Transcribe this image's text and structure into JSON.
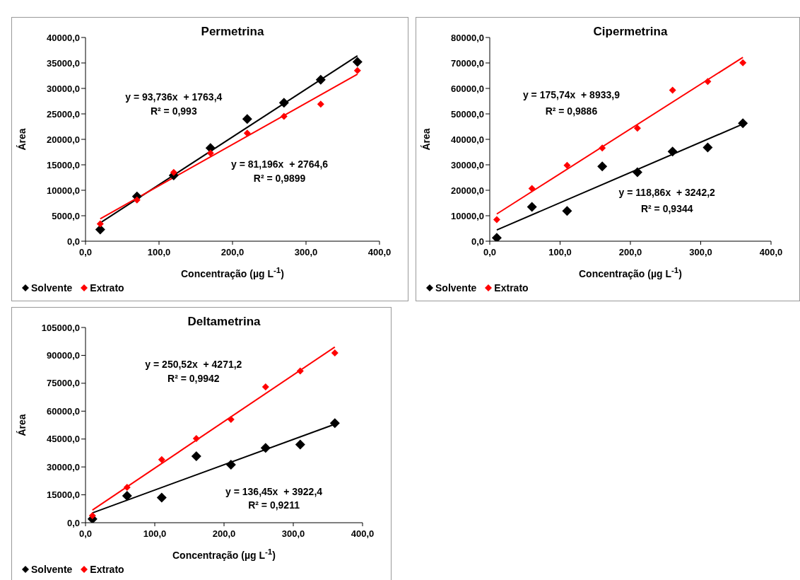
{
  "chart_data": [
    {
      "type": "scatter",
      "title": "Permetrina",
      "xlabel": "Concentração (µg L$^{-1}$)",
      "ylabel": "Área",
      "marker": "diamond",
      "legend": "bottom left",
      "line_style": "solid",
      "xlim": [
        0,
        400
      ],
      "xticks": [
        {
          "value": 0,
          "label": "0,0"
        },
        {
          "value": 100,
          "label": "100,0"
        },
        {
          "value": 200,
          "label": "200,0"
        },
        {
          "value": 300,
          "label": "300,0"
        },
        {
          "value": 400,
          "label": "400,0"
        }
      ],
      "ylim": [
        0,
        40000
      ],
      "yticks": [
        {
          "value": 0,
          "label": "0,0"
        },
        {
          "value": 5000,
          "label": "5000,0"
        },
        {
          "value": 10000,
          "label": "10000,0"
        },
        {
          "value": 15000,
          "label": "15000,0"
        },
        {
          "value": 20000,
          "label": "20000,0"
        },
        {
          "value": 25000,
          "label": "25000,0"
        },
        {
          "value": 30000,
          "label": "30000,0"
        },
        {
          "value": 35000,
          "label": "35000,0"
        },
        {
          "value": 40000,
          "label": "40000,0"
        }
      ],
      "series": [
        {
          "name": "Solvente",
          "color": "#000000",
          "x": [
            20,
            70,
            120,
            170,
            220,
            270,
            320,
            370
          ],
          "values": [
            2300,
            8800,
            12900,
            18300,
            24000,
            27200,
            31700,
            35200
          ]
        },
        {
          "name": "Extrato",
          "color": "#ff0000",
          "x": [
            20,
            70,
            120,
            170,
            220,
            270,
            320,
            370
          ],
          "values": [
            3400,
            8100,
            13500,
            17300,
            21200,
            24500,
            26900,
            33500
          ]
        },
        {
          "type": "line",
          "marker": "none",
          "color": "#000000",
          "x": [
            20,
            370
          ],
          "values": [
            3600,
            36400
          ]
        },
        {
          "type": "line",
          "marker": "none",
          "color": "#ff0000",
          "x": [
            20,
            370
          ],
          "values": [
            4400,
            32800
          ]
        }
      ],
      "annotations": [
        "y = 93,736x  + 1763,4",
        "R² = 0,993",
        "y = 81,196x  + 2764,6",
        "R² = 0,9899"
      ]
    },
    {
      "type": "scatter",
      "title": "Cipermetrina",
      "xlabel": "Concentração (µg L$^{-1}$)",
      "ylabel": "Área",
      "marker": "diamond",
      "legend": "bottom left",
      "line_style": "solid",
      "xlim": [
        0,
        400
      ],
      "xticks": [
        {
          "value": 0,
          "label": "0,0"
        },
        {
          "value": 100,
          "label": "100,0"
        },
        {
          "value": 200,
          "label": "200,0"
        },
        {
          "value": 300,
          "label": "300,0"
        },
        {
          "value": 400,
          "label": "400,0"
        }
      ],
      "ylim": [
        0,
        80000
      ],
      "yticks": [
        {
          "value": 0,
          "label": "0,0"
        },
        {
          "value": 10000,
          "label": "10000,0"
        },
        {
          "value": 20000,
          "label": "20000,0"
        },
        {
          "value": 30000,
          "label": "30000,0"
        },
        {
          "value": 40000,
          "label": "40000,0"
        },
        {
          "value": 50000,
          "label": "50000,0"
        },
        {
          "value": 60000,
          "label": "60000,0"
        },
        {
          "value": 70000,
          "label": "70000,0"
        },
        {
          "value": 80000,
          "label": "80000,0"
        }
      ],
      "series": [
        {
          "name": "Solvente",
          "color": "#000000",
          "x": [
            10,
            60,
            110,
            160,
            210,
            260,
            310,
            360
          ],
          "values": [
            1300,
            13500,
            11900,
            29400,
            27100,
            35200,
            36800,
            46300
          ]
        },
        {
          "name": "Extrato",
          "color": "#ff0000",
          "x": [
            10,
            60,
            110,
            160,
            210,
            260,
            310,
            360
          ],
          "values": [
            8500,
            20700,
            29800,
            36600,
            44400,
            59300,
            62700,
            70100
          ]
        },
        {
          "type": "line",
          "marker": "none",
          "color": "#000000",
          "x": [
            10,
            360
          ],
          "values": [
            4400,
            46000
          ]
        },
        {
          "type": "line",
          "marker": "none",
          "color": "#ff0000",
          "x": [
            10,
            360
          ],
          "values": [
            10700,
            72200
          ]
        }
      ],
      "annotations": [
        "y = 175,74x  + 8933,9",
        "R² = 0,9886",
        "y = 118,86x  + 3242,2",
        "R² = 0,9344"
      ]
    },
    {
      "type": "scatter",
      "title": "Deltametrina",
      "xlabel": "Concentração (µg L$^{-1}$)",
      "ylabel": "Área",
      "marker": "diamond",
      "legend": "bottom left",
      "line_style": "solid",
      "xlim": [
        0,
        400
      ],
      "xticks": [
        {
          "value": 0,
          "label": "0,0"
        },
        {
          "value": 100,
          "label": "100,0"
        },
        {
          "value": 200,
          "label": "200,0"
        },
        {
          "value": 300,
          "label": "300,0"
        },
        {
          "value": 400,
          "label": "400,0"
        }
      ],
      "ylim": [
        0,
        105000
      ],
      "yticks": [
        {
          "value": 0,
          "label": "0,0"
        },
        {
          "value": 15000,
          "label": "15000,0"
        },
        {
          "value": 30000,
          "label": "30000,0"
        },
        {
          "value": 45000,
          "label": "45000,0"
        },
        {
          "value": 60000,
          "label": "60000,0"
        },
        {
          "value": 75000,
          "label": "75000,0"
        },
        {
          "value": 90000,
          "label": "90000,0"
        },
        {
          "value": 105000,
          "label": "105000,0"
        }
      ],
      "series": [
        {
          "name": "Solvente",
          "color": "#000000",
          "x": [
            10,
            60,
            110,
            160,
            210,
            260,
            310,
            360
          ],
          "values": [
            2000,
            14500,
            13500,
            35800,
            31200,
            40200,
            42000,
            53500
          ]
        },
        {
          "name": "Extrato",
          "color": "#ff0000",
          "x": [
            10,
            60,
            110,
            160,
            210,
            260,
            310,
            360
          ],
          "values": [
            3800,
            19000,
            34000,
            45300,
            55500,
            73000,
            81600,
            91300
          ]
        },
        {
          "type": "line",
          "marker": "none",
          "color": "#000000",
          "x": [
            10,
            360
          ],
          "values": [
            5300,
            53000
          ]
        },
        {
          "type": "line",
          "marker": "none",
          "color": "#ff0000",
          "x": [
            10,
            360
          ],
          "values": [
            6800,
            94500
          ]
        }
      ],
      "annotations": [
        "y = 250,52x  + 4271,2",
        "R² = 0,9942",
        "y = 136,45x  + 3922,4",
        "R² = 0,9211"
      ]
    }
  ]
}
